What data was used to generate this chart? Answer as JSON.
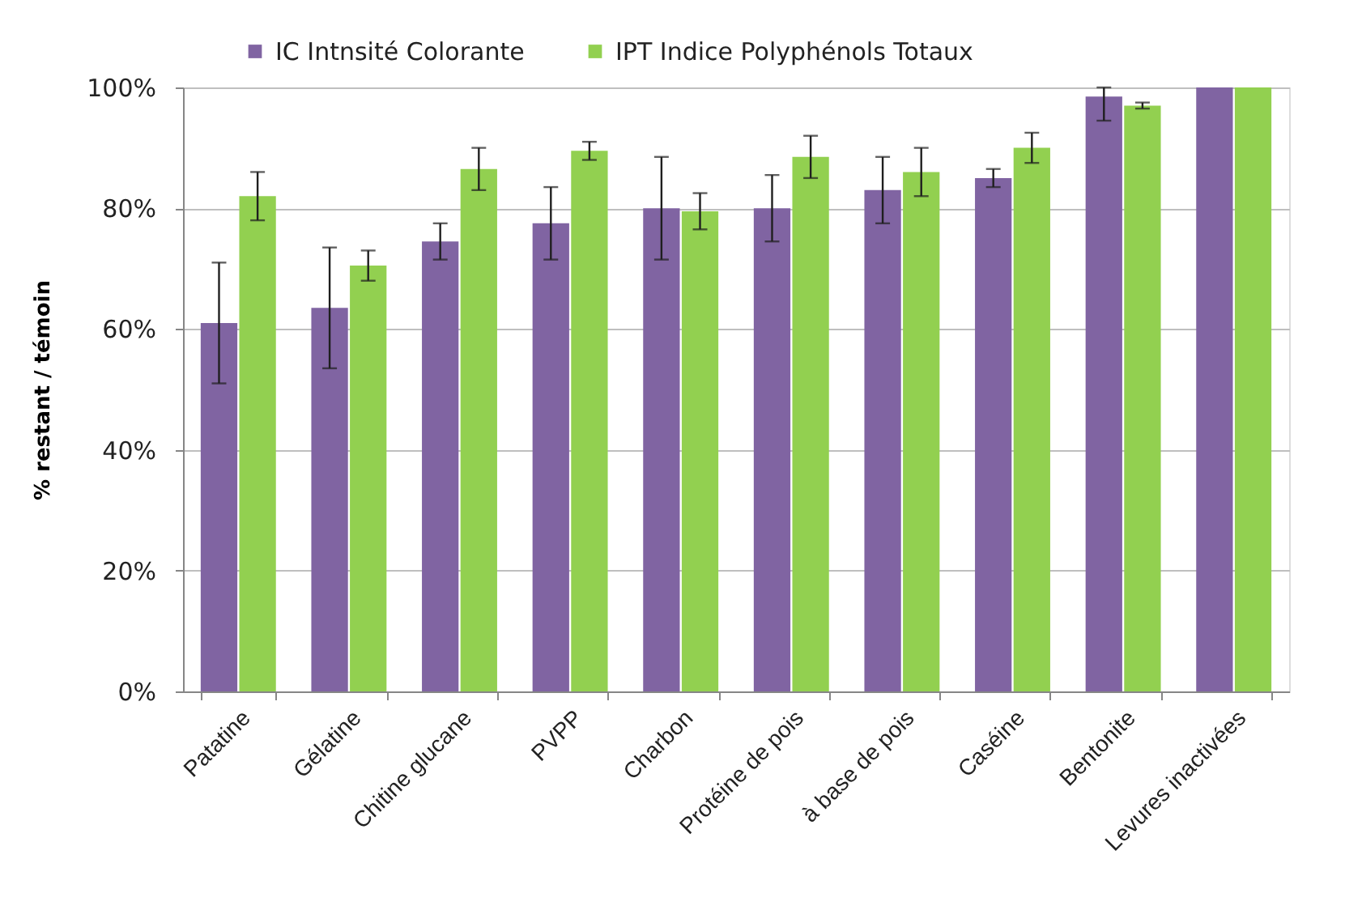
{
  "chart_data": {
    "type": "bar",
    "ylabel": "% restant / témoin",
    "categories": [
      "Patatine",
      "Gélatine",
      "Chitine glucane",
      "PVPP",
      "Charbon",
      "Protéine de pois",
      "à base de pois",
      "Caséine",
      "Bentonite",
      "Levures inactivées"
    ],
    "series": [
      {
        "name": "IC Intnsité Colorante",
        "color": "#8064a2",
        "values": [
          61,
          63.5,
          74.5,
          77.5,
          80,
          80,
          83,
          85,
          98.5,
          100
        ],
        "errors": [
          10,
          10,
          3,
          6,
          8.5,
          5.5,
          5.5,
          1.5,
          [
            94.5,
            100
          ],
          null
        ]
      },
      {
        "name": "IPT Indice Polyphénols Totaux",
        "color": "#92d050",
        "values": [
          82,
          70.5,
          86.5,
          89.5,
          79.5,
          88.5,
          86,
          90,
          97,
          100
        ],
        "errors": [
          4,
          2.5,
          3.5,
          1.5,
          3,
          3.5,
          4,
          2.5,
          0.5,
          null
        ]
      }
    ],
    "ylim": [
      0,
      100
    ],
    "yticks": [
      {
        "value": 0,
        "label": "0%"
      },
      {
        "value": 20,
        "label": "20%"
      },
      {
        "value": 40,
        "label": "40%"
      },
      {
        "value": 60,
        "label": "60%"
      },
      {
        "value": 80,
        "label": "80%"
      },
      {
        "value": 100,
        "label": "100%"
      }
    ],
    "grid": "y",
    "legend": "top"
  }
}
